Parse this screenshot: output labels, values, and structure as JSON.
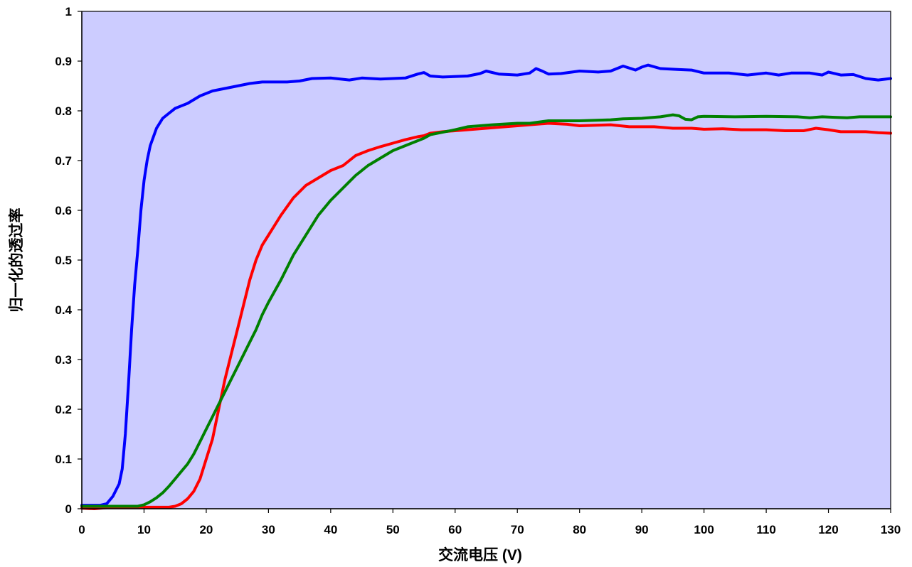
{
  "chart_data": {
    "type": "line",
    "title": "",
    "xlabel": "交流电压 (V)",
    "ylabel": "归一化的透过率",
    "xlim": [
      0,
      130
    ],
    "ylim": [
      0,
      1
    ],
    "x_ticks": [
      "0",
      "10",
      "20",
      "30",
      "40",
      "50",
      "60",
      "70",
      "80",
      "90",
      "100",
      "110",
      "120",
      "130"
    ],
    "y_ticks": [
      "0",
      "0.1",
      "0.2",
      "0.3",
      "0.4",
      "0.5",
      "0.6",
      "0.7",
      "0.8",
      "0.9",
      "1"
    ],
    "grid": false,
    "legend": "none",
    "plot_background": "#ccccff",
    "series": [
      {
        "color": "#0000ff",
        "points": [
          [
            0,
            0.007
          ],
          [
            3,
            0.007
          ],
          [
            4,
            0.01
          ],
          [
            5,
            0.025
          ],
          [
            6,
            0.05
          ],
          [
            6.5,
            0.08
          ],
          [
            7,
            0.15
          ],
          [
            7.5,
            0.25
          ],
          [
            8,
            0.36
          ],
          [
            8.5,
            0.45
          ],
          [
            9,
            0.52
          ],
          [
            9.5,
            0.6
          ],
          [
            10,
            0.66
          ],
          [
            10.5,
            0.7
          ],
          [
            11,
            0.73
          ],
          [
            12,
            0.765
          ],
          [
            13,
            0.785
          ],
          [
            14,
            0.795
          ],
          [
            15,
            0.805
          ],
          [
            17,
            0.815
          ],
          [
            19,
            0.83
          ],
          [
            21,
            0.84
          ],
          [
            23,
            0.845
          ],
          [
            25,
            0.85
          ],
          [
            27,
            0.855
          ],
          [
            29,
            0.858
          ],
          [
            33,
            0.858
          ],
          [
            35,
            0.86
          ],
          [
            37,
            0.865
          ],
          [
            40,
            0.866
          ],
          [
            43,
            0.862
          ],
          [
            45,
            0.866
          ],
          [
            48,
            0.864
          ],
          [
            52,
            0.866
          ],
          [
            54,
            0.874
          ],
          [
            55,
            0.877
          ],
          [
            56,
            0.87
          ],
          [
            58,
            0.868
          ],
          [
            62,
            0.87
          ],
          [
            64,
            0.875
          ],
          [
            65,
            0.88
          ],
          [
            67,
            0.874
          ],
          [
            70,
            0.872
          ],
          [
            72,
            0.876
          ],
          [
            73,
            0.885
          ],
          [
            74,
            0.88
          ],
          [
            75,
            0.874
          ],
          [
            77,
            0.875
          ],
          [
            80,
            0.88
          ],
          [
            83,
            0.878
          ],
          [
            85,
            0.88
          ],
          [
            87,
            0.89
          ],
          [
            89,
            0.882
          ],
          [
            90,
            0.888
          ],
          [
            91,
            0.892
          ],
          [
            93,
            0.885
          ],
          [
            96,
            0.883
          ],
          [
            98,
            0.882
          ],
          [
            100,
            0.876
          ],
          [
            104,
            0.876
          ],
          [
            107,
            0.872
          ],
          [
            110,
            0.876
          ],
          [
            112,
            0.872
          ],
          [
            114,
            0.876
          ],
          [
            117,
            0.876
          ],
          [
            119,
            0.872
          ],
          [
            120,
            0.878
          ],
          [
            122,
            0.872
          ],
          [
            124,
            0.873
          ],
          [
            126,
            0.865
          ],
          [
            128,
            0.862
          ],
          [
            130,
            0.865
          ]
        ]
      },
      {
        "color": "#ff0000",
        "points": [
          [
            0,
            0.001
          ],
          [
            2,
            0
          ],
          [
            5,
            0.003
          ],
          [
            10,
            0.003
          ],
          [
            14,
            0.003
          ],
          [
            15,
            0.005
          ],
          [
            16,
            0.01
          ],
          [
            17,
            0.02
          ],
          [
            18,
            0.035
          ],
          [
            19,
            0.06
          ],
          [
            20,
            0.1
          ],
          [
            21,
            0.14
          ],
          [
            22,
            0.2
          ],
          [
            23,
            0.26
          ],
          [
            24,
            0.31
          ],
          [
            25,
            0.36
          ],
          [
            26,
            0.41
          ],
          [
            27,
            0.46
          ],
          [
            28,
            0.5
          ],
          [
            29,
            0.53
          ],
          [
            30,
            0.55
          ],
          [
            32,
            0.59
          ],
          [
            34,
            0.625
          ],
          [
            36,
            0.65
          ],
          [
            38,
            0.665
          ],
          [
            40,
            0.68
          ],
          [
            42,
            0.69
          ],
          [
            44,
            0.71
          ],
          [
            46,
            0.72
          ],
          [
            48,
            0.728
          ],
          [
            50,
            0.735
          ],
          [
            52,
            0.742
          ],
          [
            54,
            0.748
          ],
          [
            55,
            0.75
          ],
          [
            56,
            0.755
          ],
          [
            58,
            0.758
          ],
          [
            60,
            0.76
          ],
          [
            65,
            0.765
          ],
          [
            70,
            0.77
          ],
          [
            75,
            0.775
          ],
          [
            78,
            0.773
          ],
          [
            80,
            0.77
          ],
          [
            85,
            0.772
          ],
          [
            88,
            0.768
          ],
          [
            92,
            0.768
          ],
          [
            95,
            0.765
          ],
          [
            98,
            0.765
          ],
          [
            100,
            0.763
          ],
          [
            103,
            0.764
          ],
          [
            106,
            0.762
          ],
          [
            110,
            0.762
          ],
          [
            113,
            0.76
          ],
          [
            116,
            0.76
          ],
          [
            118,
            0.765
          ],
          [
            120,
            0.762
          ],
          [
            122,
            0.758
          ],
          [
            126,
            0.758
          ],
          [
            128,
            0.756
          ],
          [
            130,
            0.755
          ]
        ]
      },
      {
        "color": "#008000",
        "points": [
          [
            0,
            0.005
          ],
          [
            5,
            0.005
          ],
          [
            9,
            0.005
          ],
          [
            10,
            0.008
          ],
          [
            11,
            0.014
          ],
          [
            12,
            0.022
          ],
          [
            13,
            0.032
          ],
          [
            14,
            0.045
          ],
          [
            15,
            0.06
          ],
          [
            16,
            0.075
          ],
          [
            17,
            0.09
          ],
          [
            18,
            0.11
          ],
          [
            19,
            0.135
          ],
          [
            20,
            0.16
          ],
          [
            21,
            0.185
          ],
          [
            22,
            0.21
          ],
          [
            23,
            0.235
          ],
          [
            24,
            0.26
          ],
          [
            25,
            0.285
          ],
          [
            26,
            0.31
          ],
          [
            27,
            0.335
          ],
          [
            28,
            0.36
          ],
          [
            29,
            0.39
          ],
          [
            30,
            0.415
          ],
          [
            32,
            0.46
          ],
          [
            34,
            0.51
          ],
          [
            36,
            0.55
          ],
          [
            38,
            0.59
          ],
          [
            40,
            0.62
          ],
          [
            42,
            0.645
          ],
          [
            44,
            0.67
          ],
          [
            46,
            0.69
          ],
          [
            48,
            0.705
          ],
          [
            50,
            0.72
          ],
          [
            52,
            0.73
          ],
          [
            54,
            0.74
          ],
          [
            55,
            0.745
          ],
          [
            56,
            0.752
          ],
          [
            58,
            0.757
          ],
          [
            60,
            0.762
          ],
          [
            62,
            0.768
          ],
          [
            64,
            0.77
          ],
          [
            66,
            0.772
          ],
          [
            70,
            0.775
          ],
          [
            72,
            0.775
          ],
          [
            75,
            0.78
          ],
          [
            80,
            0.78
          ],
          [
            85,
            0.782
          ],
          [
            87,
            0.784
          ],
          [
            90,
            0.785
          ],
          [
            93,
            0.788
          ],
          [
            95,
            0.792
          ],
          [
            96,
            0.79
          ],
          [
            97,
            0.783
          ],
          [
            98,
            0.782
          ],
          [
            99,
            0.788
          ],
          [
            100,
            0.789
          ],
          [
            105,
            0.788
          ],
          [
            110,
            0.789
          ],
          [
            115,
            0.788
          ],
          [
            117,
            0.786
          ],
          [
            119,
            0.788
          ],
          [
            121,
            0.787
          ],
          [
            123,
            0.786
          ],
          [
            125,
            0.788
          ],
          [
            130,
            0.788
          ]
        ]
      }
    ]
  }
}
